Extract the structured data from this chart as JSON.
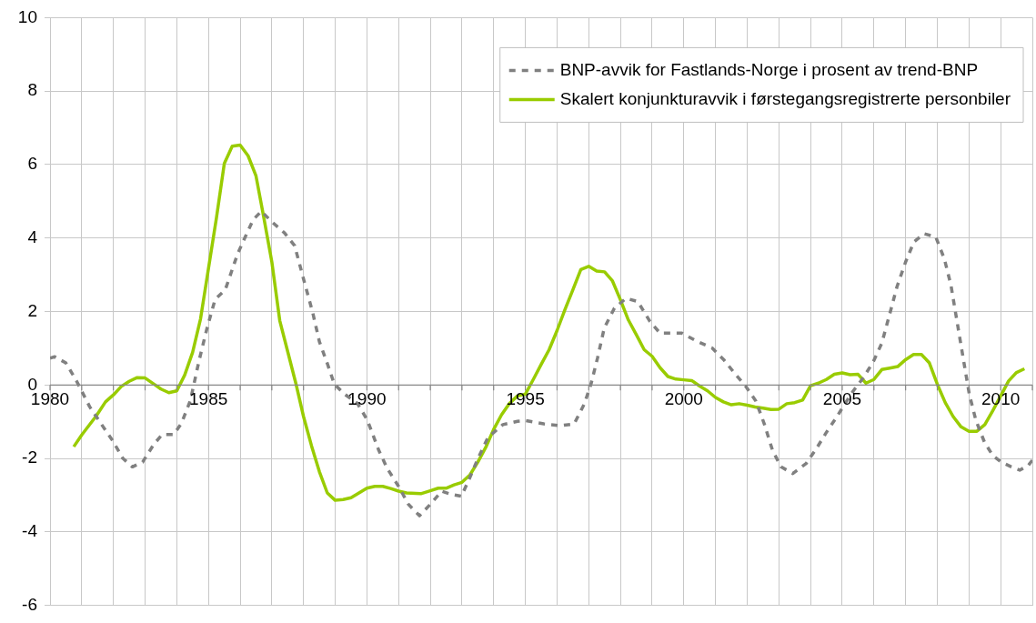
{
  "chart_data": {
    "type": "line",
    "marker": "none",
    "grid": true,
    "legend": "top right",
    "xlim": [
      1980,
      2011
    ],
    "xticks": [
      1980,
      {
        "value": 1981,
        "label": null
      },
      {
        "value": 1982,
        "label": null
      },
      {
        "value": 1983,
        "label": null
      },
      {
        "value": 1984,
        "label": null
      },
      1985,
      {
        "value": 1986,
        "label": null
      },
      {
        "value": 1987,
        "label": null
      },
      {
        "value": 1988,
        "label": null
      },
      {
        "value": 1989,
        "label": null
      },
      1990,
      {
        "value": 1991,
        "label": null
      },
      {
        "value": 1992,
        "label": null
      },
      {
        "value": 1993,
        "label": null
      },
      {
        "value": 1994,
        "label": null
      },
      1995,
      {
        "value": 1996,
        "label": null
      },
      {
        "value": 1997,
        "label": null
      },
      {
        "value": 1998,
        "label": null
      },
      {
        "value": 1999,
        "label": null
      },
      2000,
      {
        "value": 2001,
        "label": null
      },
      {
        "value": 2002,
        "label": null
      },
      {
        "value": 2003,
        "label": null
      },
      {
        "value": 2004,
        "label": null
      },
      2005,
      {
        "value": 2006,
        "label": null
      },
      {
        "value": 2007,
        "label": null
      },
      {
        "value": 2008,
        "label": null
      },
      {
        "value": 2009,
        "label": null
      },
      2010,
      {
        "value": 2011,
        "label": null
      }
    ],
    "ylim": [
      -6,
      10
    ],
    "yticks": [
      -6,
      -4,
      -2,
      0,
      2,
      4,
      6,
      8,
      10
    ],
    "series": [
      {
        "name": "BNP-avvik for Fastlands-Norge i prosent av trend-BNP",
        "color": "#808080",
        "line_style": "dashed",
        "x": [
          1980,
          1980.15,
          1980.5,
          1980.83,
          1981.25,
          1981.56,
          1981.98,
          1982.3,
          1982.6,
          1982.92,
          1983.28,
          1983.54,
          1983.9,
          1984.15,
          1984.43,
          1984.7,
          1984.95,
          1985.21,
          1985.53,
          1985.92,
          1986.15,
          1986.41,
          1986.67,
          1986.99,
          1987.4,
          1987.72,
          1987.98,
          1988.29,
          1988.5,
          1988.76,
          1988.97,
          1989.28,
          1989.7,
          1990.01,
          1990.38,
          1990.64,
          1991,
          1991.31,
          1991.66,
          1992,
          1992.36,
          1992.67,
          1992.98,
          1993.24,
          1993.5,
          1993.82,
          1994.29,
          1994.75,
          1995,
          1995.58,
          1996.11,
          1996.54,
          1996.86,
          1997.07,
          1997.28,
          1997.49,
          1997.81,
          1998.18,
          1998.55,
          1998.93,
          1999.25,
          1999.94,
          2000.41,
          2000.89,
          2001.26,
          2001.63,
          2001.95,
          2002.27,
          2002.54,
          2002.8,
          2003.07,
          2003.44,
          2003.86,
          2004.18,
          2004.5,
          2004.82,
          2005.08,
          2005.35,
          2005.67,
          2005.99,
          2006.25,
          2006.52,
          2006.73,
          2007,
          2007.26,
          2007.58,
          2007.95,
          2008.22,
          2008.43,
          2008.64,
          2008.85,
          2009.01,
          2009.22,
          2009.49,
          2009.75,
          2010.02,
          2010.34,
          2010.6,
          2010.87,
          2011
        ],
        "values": [
          0.73,
          0.77,
          0.6,
          0.12,
          -0.59,
          -0.99,
          -1.52,
          -2.0,
          -2.23,
          -2.1,
          -1.61,
          -1.35,
          -1.35,
          -1.04,
          -0.42,
          0.65,
          1.53,
          2.33,
          2.59,
          3.57,
          4.01,
          4.5,
          4.73,
          4.45,
          4.14,
          3.79,
          2.95,
          1.97,
          1.18,
          0.56,
          0.03,
          -0.24,
          -0.5,
          -0.95,
          -1.79,
          -2.27,
          -2.76,
          -3.25,
          -3.56,
          -3.25,
          -2.89,
          -2.98,
          -3.03,
          -2.54,
          -2.01,
          -1.43,
          -1.08,
          -0.99,
          -0.97,
          -1.06,
          -1.11,
          -1.06,
          -0.52,
          0.02,
          0.74,
          1.55,
          2.09,
          2.36,
          2.27,
          1.73,
          1.41,
          1.41,
          1.19,
          1.01,
          0.69,
          0.29,
          -0.03,
          -0.43,
          -1.06,
          -1.78,
          -2.23,
          -2.41,
          -2.14,
          -1.74,
          -1.29,
          -0.88,
          -0.52,
          -0.16,
          0.2,
          0.65,
          1.14,
          2.0,
          2.68,
          3.35,
          3.89,
          4.12,
          4.03,
          3.44,
          2.72,
          1.64,
          0.56,
          -0.25,
          -0.97,
          -1.56,
          -1.92,
          -2.1,
          -2.23,
          -2.32,
          -2.19,
          -2.05
        ]
      },
      {
        "name": "Skalert konjunkturavvik i førstegangsregistrerte personbiler",
        "color": "#99cc00",
        "line_style": "solid",
        "x": [
          1980.75,
          1981,
          1981.46,
          1981.75,
          1982,
          1982.25,
          1982.5,
          1982.75,
          1983,
          1983.25,
          1983.5,
          1983.75,
          1984,
          1984.25,
          1984.5,
          1984.75,
          1985,
          1985.25,
          1985.5,
          1985.75,
          1986,
          1986.25,
          1986.5,
          1986.75,
          1987,
          1987.25,
          1987.5,
          1987.75,
          1988,
          1988.25,
          1988.5,
          1988.75,
          1989,
          1989.25,
          1989.5,
          1989.75,
          1990,
          1990.25,
          1990.5,
          1990.75,
          1991,
          1991.25,
          1991.7,
          1992,
          1992.25,
          1992.5,
          1992.75,
          1993,
          1993.25,
          1993.5,
          1993.75,
          1994,
          1994.25,
          1994.5,
          1994.75,
          1995,
          1995.25,
          1995.5,
          1995.75,
          1996,
          1996.25,
          1996.5,
          1996.75,
          1997,
          1997.25,
          1997.5,
          1997.75,
          1998,
          1998.25,
          1998.5,
          1998.75,
          1999,
          1999.25,
          1999.5,
          1999.75,
          2000,
          2000.25,
          2000.5,
          2000.75,
          2001,
          2001.25,
          2001.5,
          2001.75,
          2002,
          2002.25,
          2002.5,
          2002.75,
          2003,
          2003.25,
          2003.5,
          2003.75,
          2004,
          2004.25,
          2004.5,
          2004.75,
          2005,
          2005.25,
          2005.5,
          2005.75,
          2006,
          2006.25,
          2006.5,
          2006.75,
          2007,
          2007.25,
          2007.5,
          2007.75,
          2008,
          2008.25,
          2008.5,
          2008.75,
          2009,
          2009.25,
          2009.5,
          2009.75,
          2010,
          2010.25,
          2010.5,
          2010.75
        ],
        "values": [
          -1.68,
          -1.36,
          -0.84,
          -0.46,
          -0.27,
          -0.04,
          0.1,
          0.2,
          0.19,
          0.04,
          -0.11,
          -0.21,
          -0.16,
          0.27,
          0.89,
          1.8,
          3.17,
          4.54,
          6.03,
          6.5,
          6.53,
          6.24,
          5.69,
          4.54,
          3.35,
          1.75,
          0.91,
          0.07,
          -0.86,
          -1.65,
          -2.36,
          -2.94,
          -3.14,
          -3.12,
          -3.07,
          -2.94,
          -2.81,
          -2.76,
          -2.76,
          -2.82,
          -2.89,
          -2.94,
          -2.96,
          -2.88,
          -2.81,
          -2.81,
          -2.72,
          -2.65,
          -2.45,
          -2.1,
          -1.7,
          -1.21,
          -0.81,
          -0.5,
          -0.3,
          -0.25,
          0.15,
          0.56,
          0.96,
          1.48,
          2.05,
          2.59,
          3.14,
          3.23,
          3.1,
          3.08,
          2.83,
          2.32,
          1.77,
          1.37,
          0.96,
          0.78,
          0.47,
          0.23,
          0.16,
          0.14,
          0.12,
          -0.03,
          -0.16,
          -0.34,
          -0.46,
          -0.54,
          -0.51,
          -0.55,
          -0.6,
          -0.63,
          -0.67,
          -0.66,
          -0.51,
          -0.48,
          -0.41,
          -0.02,
          0.05,
          0.15,
          0.29,
          0.33,
          0.28,
          0.29,
          0.05,
          0.15,
          0.42,
          0.46,
          0.5,
          0.69,
          0.83,
          0.83,
          0.6,
          0.02,
          -0.48,
          -0.86,
          -1.14,
          -1.26,
          -1.26,
          -1.08,
          -0.7,
          -0.3,
          0.11,
          0.34,
          0.44
        ]
      }
    ]
  }
}
